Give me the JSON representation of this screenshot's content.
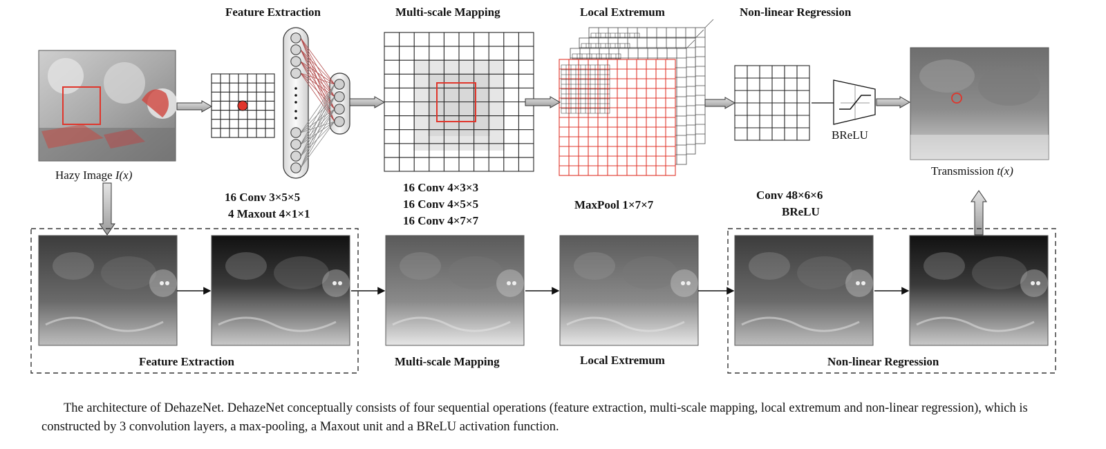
{
  "top": {
    "stage_titles": [
      "Feature Extraction",
      "Multi-scale Mapping",
      "Local Extremum",
      "Non-linear Regression"
    ],
    "input_label": "Hazy Image",
    "input_symbol": "I(x)",
    "output_label": "Transmission",
    "output_symbol": "t(x)",
    "brelu_label": "BReLU"
  },
  "layers": {
    "feature_extraction": [
      "16 Conv  3×5×5",
      "4 Maxout  4×1×1"
    ],
    "multiscale_mapping": [
      "16 Conv  4×3×3",
      "16 Conv  4×5×5",
      "16 Conv  4×7×7"
    ],
    "local_extremum": [
      "MaxPool  1×7×7"
    ],
    "nonlinear_regression": [
      "Conv  48×6×6",
      "BReLU"
    ]
  },
  "bottom": {
    "stage_titles": [
      "Feature Extraction",
      "Multi-scale Mapping",
      "Local Extremum",
      "Non-linear Regression"
    ]
  },
  "caption": "The architecture of DehazeNet. DehazeNet conceptually consists of four sequential operations (feature extraction, multi-scale mapping, local extremum and non-linear regression), which is constructed by 3 convolution layers, a max-pooling, a Maxout unit and a BReLU activation function.",
  "colors": {
    "highlight": "#e0352b",
    "grid_line": "#222222",
    "arrow_fill": "#b8b8b8",
    "dashed_box": "#333333"
  }
}
